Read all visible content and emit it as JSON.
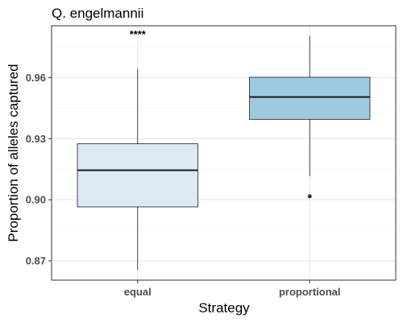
{
  "chart_data": {
    "type": "box",
    "title": "Q. engelmannii",
    "xlabel": "Strategy",
    "ylabel": "Proportion of alleles captured",
    "categories": [
      "equal",
      "proportional"
    ],
    "ylim": [
      0.8605,
      0.9855
    ],
    "yticks": [
      0.87,
      0.9,
      0.93,
      0.96
    ],
    "ytick_labels": [
      "0.87",
      "0.90",
      "0.93",
      "0.96"
    ],
    "grid": true,
    "legend": "none",
    "annotation": "****",
    "boxes": [
      {
        "category": "equal",
        "whisker_low": 0.8655,
        "q1": 0.8965,
        "median": 0.9145,
        "q3": 0.9275,
        "whisker_high": 0.9644,
        "outliers": [],
        "fill": "#dde8f5"
      },
      {
        "category": "proportional",
        "whisker_low": 0.9115,
        "q1": 0.9395,
        "median": 0.9505,
        "q3": 0.9602,
        "whisker_high": 0.9807,
        "outliers": [
          0.9017
        ],
        "fill": "#9ecae1"
      }
    ]
  }
}
